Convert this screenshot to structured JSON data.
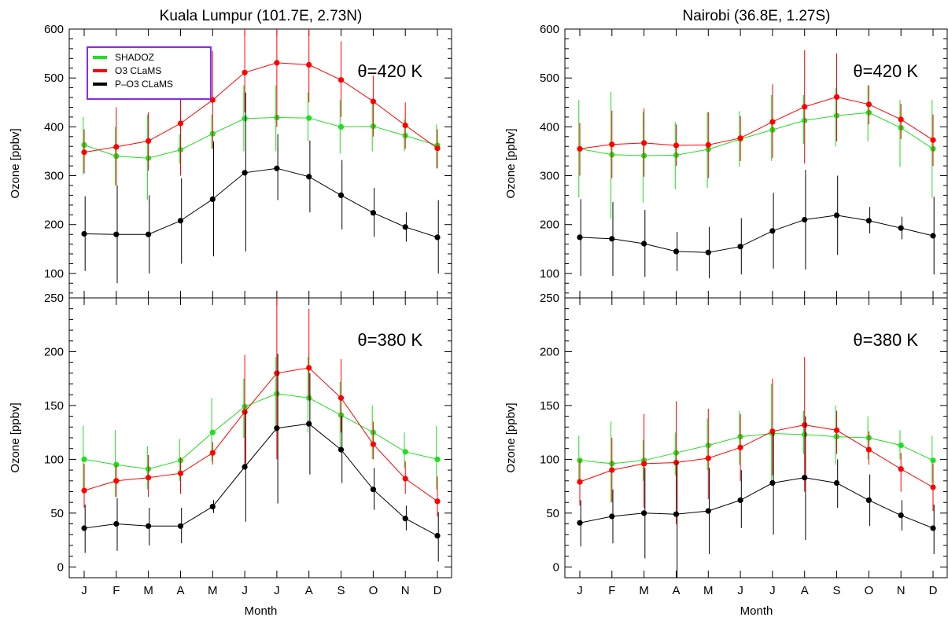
{
  "legend": {
    "entries": [
      {
        "label": "SHADOZ",
        "color": "#22dd22"
      },
      {
        "label": "O3 CLaMS",
        "color": "#ff0000"
      },
      {
        "label": "P–O3 CLaMS",
        "color": "#000000"
      }
    ],
    "border_color": "#8a2be2"
  },
  "chart_data": [
    {
      "type": "line",
      "column_title": "Kuala Lumpur (101.7E, 2.73N)",
      "annotation": "θ=420 K",
      "xlabel": "",
      "ylabel": "Ozone [ppbv]",
      "categories": [
        "J",
        "F",
        "M",
        "A",
        "M",
        "J",
        "J",
        "A",
        "S",
        "O",
        "N",
        "D"
      ],
      "ylim": [
        50,
        600
      ],
      "yticks": [
        100,
        200,
        300,
        400,
        500,
        600
      ],
      "series": [
        {
          "name": "SHADOZ",
          "color": "#22dd22",
          "values": [
            363,
            340,
            336,
            353,
            386,
            417,
            419,
            418,
            400,
            401,
            382,
            362
          ],
          "err_low": [
            302,
            280,
            250,
            325,
            355,
            350,
            350,
            370,
            345,
            350,
            350,
            315
          ],
          "err_high": [
            420,
            400,
            425,
            385,
            425,
            485,
            485,
            470,
            455,
            455,
            415,
            405
          ]
        },
        {
          "name": "O3 CLaMS",
          "color": "#ff0000",
          "values": [
            348,
            359,
            371,
            407,
            455,
            511,
            531,
            527,
            496,
            452,
            403,
            356
          ],
          "err_low": [
            305,
            280,
            310,
            300,
            355,
            430,
            400,
            450,
            420,
            380,
            355,
            315
          ],
          "err_high": [
            395,
            440,
            430,
            480,
            555,
            600,
            600,
            600,
            575,
            505,
            450,
            395
          ]
        },
        {
          "name": "P–O3 CLaMS",
          "color": "#000000",
          "values": [
            181,
            180,
            180,
            208,
            252,
            306,
            315,
            298,
            260,
            224,
            195,
            174
          ],
          "err_low": [
            105,
            80,
            100,
            120,
            135,
            145,
            250,
            225,
            190,
            175,
            165,
            100
          ],
          "err_high": [
            258,
            280,
            260,
            295,
            370,
            470,
            385,
            372,
            332,
            275,
            225,
            250
          ]
        }
      ]
    },
    {
      "type": "line",
      "column_title": "Kuala Lumpur (101.7E, 2.73N)",
      "annotation": "θ=380 K",
      "xlabel": "Month",
      "ylabel": "Ozone [ppbv]",
      "categories": [
        "J",
        "F",
        "M",
        "A",
        "M",
        "J",
        "J",
        "A",
        "S",
        "O",
        "N",
        "D"
      ],
      "ylim": [
        -10,
        250
      ],
      "yticks": [
        0,
        50,
        100,
        150,
        200,
        250
      ],
      "series": [
        {
          "name": "SHADOZ",
          "color": "#22dd22",
          "values": [
            100,
            95,
            91,
            99,
            125,
            149,
            161,
            157,
            141,
            125,
            107,
            100
          ],
          "err_low": [
            72,
            65,
            72,
            80,
            98,
            120,
            125,
            125,
            110,
            100,
            92,
            72
          ],
          "err_high": [
            131,
            127,
            112,
            119,
            157,
            175,
            195,
            195,
            172,
            150,
            125,
            131
          ]
        },
        {
          "name": "O3 CLaMS",
          "color": "#ff0000",
          "values": [
            71,
            80,
            83,
            87,
            106,
            144,
            180,
            185,
            157,
            114,
            82,
            61
          ],
          "err_low": [
            55,
            65,
            65,
            68,
            95,
            92,
            100,
            155,
            125,
            100,
            68,
            47
          ],
          "err_high": [
            96,
            95,
            104,
            102,
            116,
            197,
            250,
            240,
            193,
            135,
            98,
            84
          ]
        },
        {
          "name": "P–O3 CLaMS",
          "color": "#000000",
          "values": [
            36,
            40,
            38,
            38,
            56,
            93,
            129,
            133,
            109,
            72,
            45,
            29
          ],
          "err_low": [
            13,
            15,
            20,
            22,
            50,
            42,
            59,
            86,
            78,
            53,
            34,
            5
          ],
          "err_high": [
            58,
            64,
            55,
            55,
            62,
            145,
            198,
            180,
            140,
            92,
            57,
            51
          ]
        }
      ]
    },
    {
      "type": "line",
      "column_title": "Nairobi (36.8E, 1.27S)",
      "annotation": "θ=420 K",
      "xlabel": "",
      "ylabel": "Ozone [ppbv]",
      "categories": [
        "J",
        "F",
        "M",
        "A",
        "M",
        "J",
        "J",
        "A",
        "S",
        "O",
        "N",
        "D"
      ],
      "ylim": [
        50,
        600
      ],
      "yticks": [
        100,
        200,
        300,
        400,
        500,
        600
      ],
      "series": [
        {
          "name": "SHADOZ",
          "color": "#22dd22",
          "values": [
            355,
            343,
            341,
            342,
            354,
            375,
            394,
            413,
            423,
            429,
            398,
            355
          ],
          "err_low": [
            255,
            212,
            245,
            272,
            275,
            318,
            330,
            365,
            360,
            370,
            318,
            255
          ],
          "err_high": [
            455,
            472,
            430,
            410,
            430,
            432,
            465,
            465,
            480,
            485,
            455,
            455
          ]
        },
        {
          "name": "O3 CLaMS",
          "color": "#ff0000",
          "values": [
            355,
            364,
            367,
            362,
            363,
            377,
            410,
            441,
            461,
            446,
            415,
            373
          ],
          "err_low": [
            300,
            295,
            298,
            320,
            295,
            330,
            336,
            325,
            370,
            405,
            375,
            320
          ],
          "err_high": [
            408,
            433,
            438,
            405,
            430,
            422,
            487,
            557,
            550,
            485,
            447,
            425
          ]
        },
        {
          "name": "P–O3 CLaMS",
          "color": "#000000",
          "values": [
            174,
            171,
            161,
            145,
            143,
            155,
            187,
            210,
            219,
            208,
            193,
            177
          ],
          "err_low": [
            95,
            95,
            93,
            105,
            90,
            98,
            110,
            108,
            138,
            182,
            170,
            98
          ],
          "err_high": [
            252,
            246,
            230,
            185,
            195,
            213,
            265,
            312,
            300,
            236,
            216,
            257
          ]
        }
      ]
    },
    {
      "type": "line",
      "column_title": "Nairobi (36.8E, 1.27S)",
      "annotation": "θ=380 K",
      "xlabel": "Month",
      "ylabel": "Ozone [ppbv]",
      "categories": [
        "J",
        "F",
        "M",
        "A",
        "M",
        "J",
        "J",
        "A",
        "S",
        "O",
        "N",
        "D"
      ],
      "ylim": [
        -10,
        250
      ],
      "yticks": [
        0,
        50,
        100,
        150,
        200,
        250
      ],
      "series": [
        {
          "name": "SHADOZ",
          "color": "#22dd22",
          "values": [
            99,
            96,
            99,
            106,
            113,
            121,
            124,
            123,
            121,
            120,
            113,
            99
          ],
          "err_low": [
            78,
            60,
            80,
            85,
            90,
            95,
            80,
            105,
            95,
            100,
            100,
            78
          ],
          "err_high": [
            122,
            135,
            118,
            125,
            138,
            145,
            170,
            145,
            150,
            140,
            127,
            122
          ]
        },
        {
          "name": "O3 CLaMS",
          "color": "#ff0000",
          "values": [
            79,
            90,
            96,
            97,
            101,
            111,
            126,
            132,
            127,
            109,
            91,
            74
          ],
          "err_low": [
            57,
            60,
            55,
            40,
            63,
            80,
            85,
            70,
            105,
            95,
            70,
            52
          ],
          "err_high": [
            100,
            120,
            142,
            154,
            147,
            142,
            175,
            195,
            145,
            126,
            106,
            96
          ]
        },
        {
          "name": "P–O3 CLaMS",
          "color": "#000000",
          "values": [
            41,
            47,
            50,
            49,
            52,
            62,
            78,
            83,
            78,
            62,
            48,
            36
          ],
          "err_low": [
            19,
            22,
            8,
            -10,
            12,
            36,
            30,
            25,
            55,
            38,
            34,
            12
          ],
          "err_high": [
            62,
            72,
            92,
            98,
            92,
            90,
            125,
            140,
            100,
            86,
            62,
            58
          ]
        }
      ]
    }
  ]
}
